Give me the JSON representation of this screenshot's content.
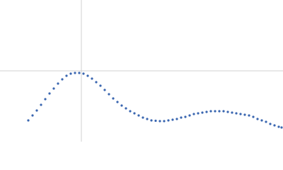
{
  "chart_data": {
    "type": "scatter",
    "color": "#3a66b0",
    "zero_lines": true,
    "xlim": [
      -115,
      285
    ],
    "ylim": [
      -100,
      100
    ],
    "x": [
      -75,
      -69,
      -63,
      -57,
      -51,
      -45,
      -39,
      -33,
      -27,
      -21,
      -15,
      -9,
      -3,
      3,
      9,
      15,
      21,
      27,
      33,
      39,
      45,
      51,
      57,
      63,
      69,
      75,
      81,
      87,
      93,
      99,
      105,
      111,
      117,
      123,
      129,
      135,
      141,
      147,
      153,
      159,
      165,
      171,
      177,
      183,
      189,
      195,
      201,
      207,
      213,
      219,
      225,
      231,
      237,
      243,
      249,
      255,
      261,
      267,
      273,
      279,
      283
    ],
    "values": [
      -70,
      -63,
      -56,
      -48,
      -40,
      -32,
      -25,
      -18,
      -12,
      -7,
      -4,
      -3,
      -3,
      -4,
      -7,
      -11,
      -16,
      -21,
      -27,
      -33,
      -39,
      -44,
      -49,
      -53,
      -57,
      -60,
      -63,
      -66,
      -68,
      -70,
      -70.5,
      -71,
      -71,
      -70,
      -69,
      -68,
      -66,
      -65,
      -63,
      -61,
      -60,
      -59,
      -58,
      -57,
      -57,
      -57,
      -57,
      -58,
      -59,
      -60,
      -61,
      -62,
      -63,
      -65,
      -68,
      -70,
      -72,
      -75,
      -77,
      -79,
      -80
    ]
  }
}
